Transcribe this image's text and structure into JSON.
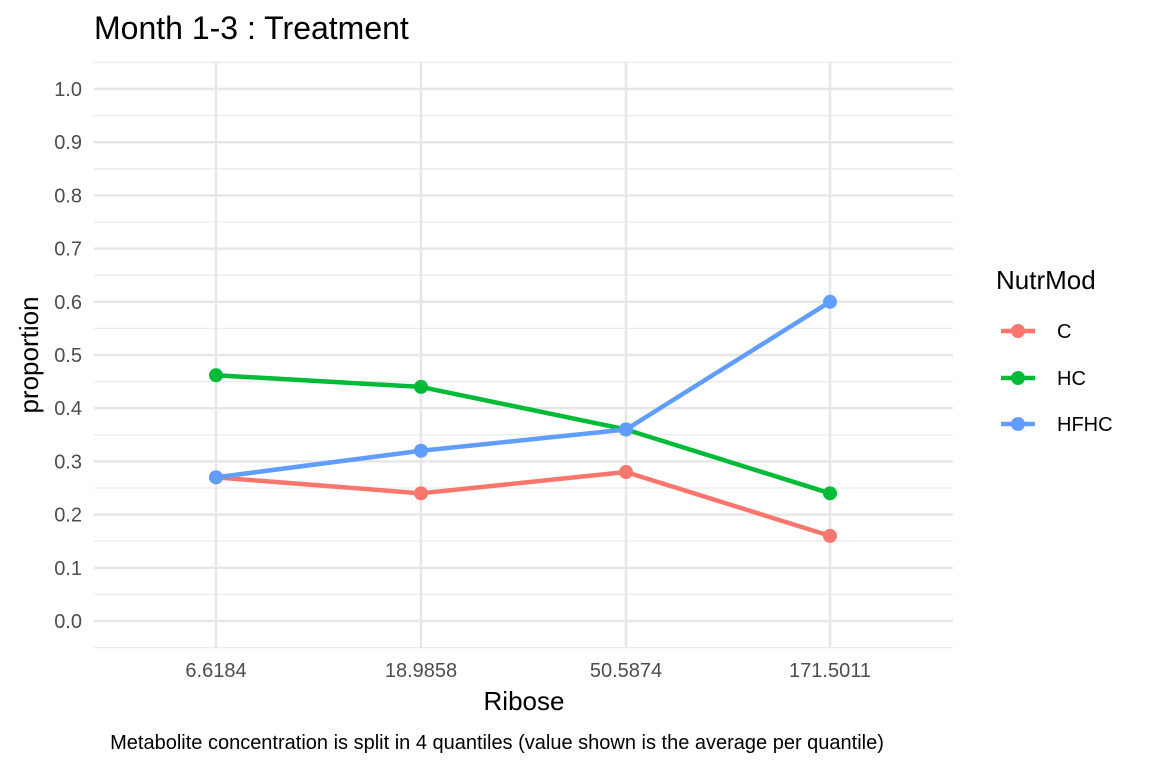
{
  "chart_data": {
    "type": "line",
    "title": "Month 1-3 : Treatment",
    "xlabel": "Ribose",
    "ylabel": "proportion",
    "caption": "Metabolite concentration is split in 4 quantiles (value shown is the average per quantile)",
    "categories": [
      "6.6184",
      "18.9858",
      "50.5874",
      "171.5011"
    ],
    "y_ticks": [
      "0.0",
      "0.1",
      "0.2",
      "0.3",
      "0.4",
      "0.5",
      "0.6",
      "0.7",
      "0.8",
      "0.9",
      "1.0"
    ],
    "ylim": [
      0,
      1
    ],
    "grid": true,
    "legend": {
      "title": "NutrMod",
      "placement": "right"
    },
    "series": [
      {
        "name": "C",
        "color": "#F8766D",
        "values": [
          0.27,
          0.24,
          0.28,
          0.16
        ]
      },
      {
        "name": "HC",
        "color": "#00BA38",
        "values": [
          0.462,
          0.44,
          0.36,
          0.24
        ]
      },
      {
        "name": "HFHC",
        "color": "#619CFF",
        "values": [
          0.27,
          0.32,
          0.36,
          0.6
        ]
      }
    ]
  }
}
